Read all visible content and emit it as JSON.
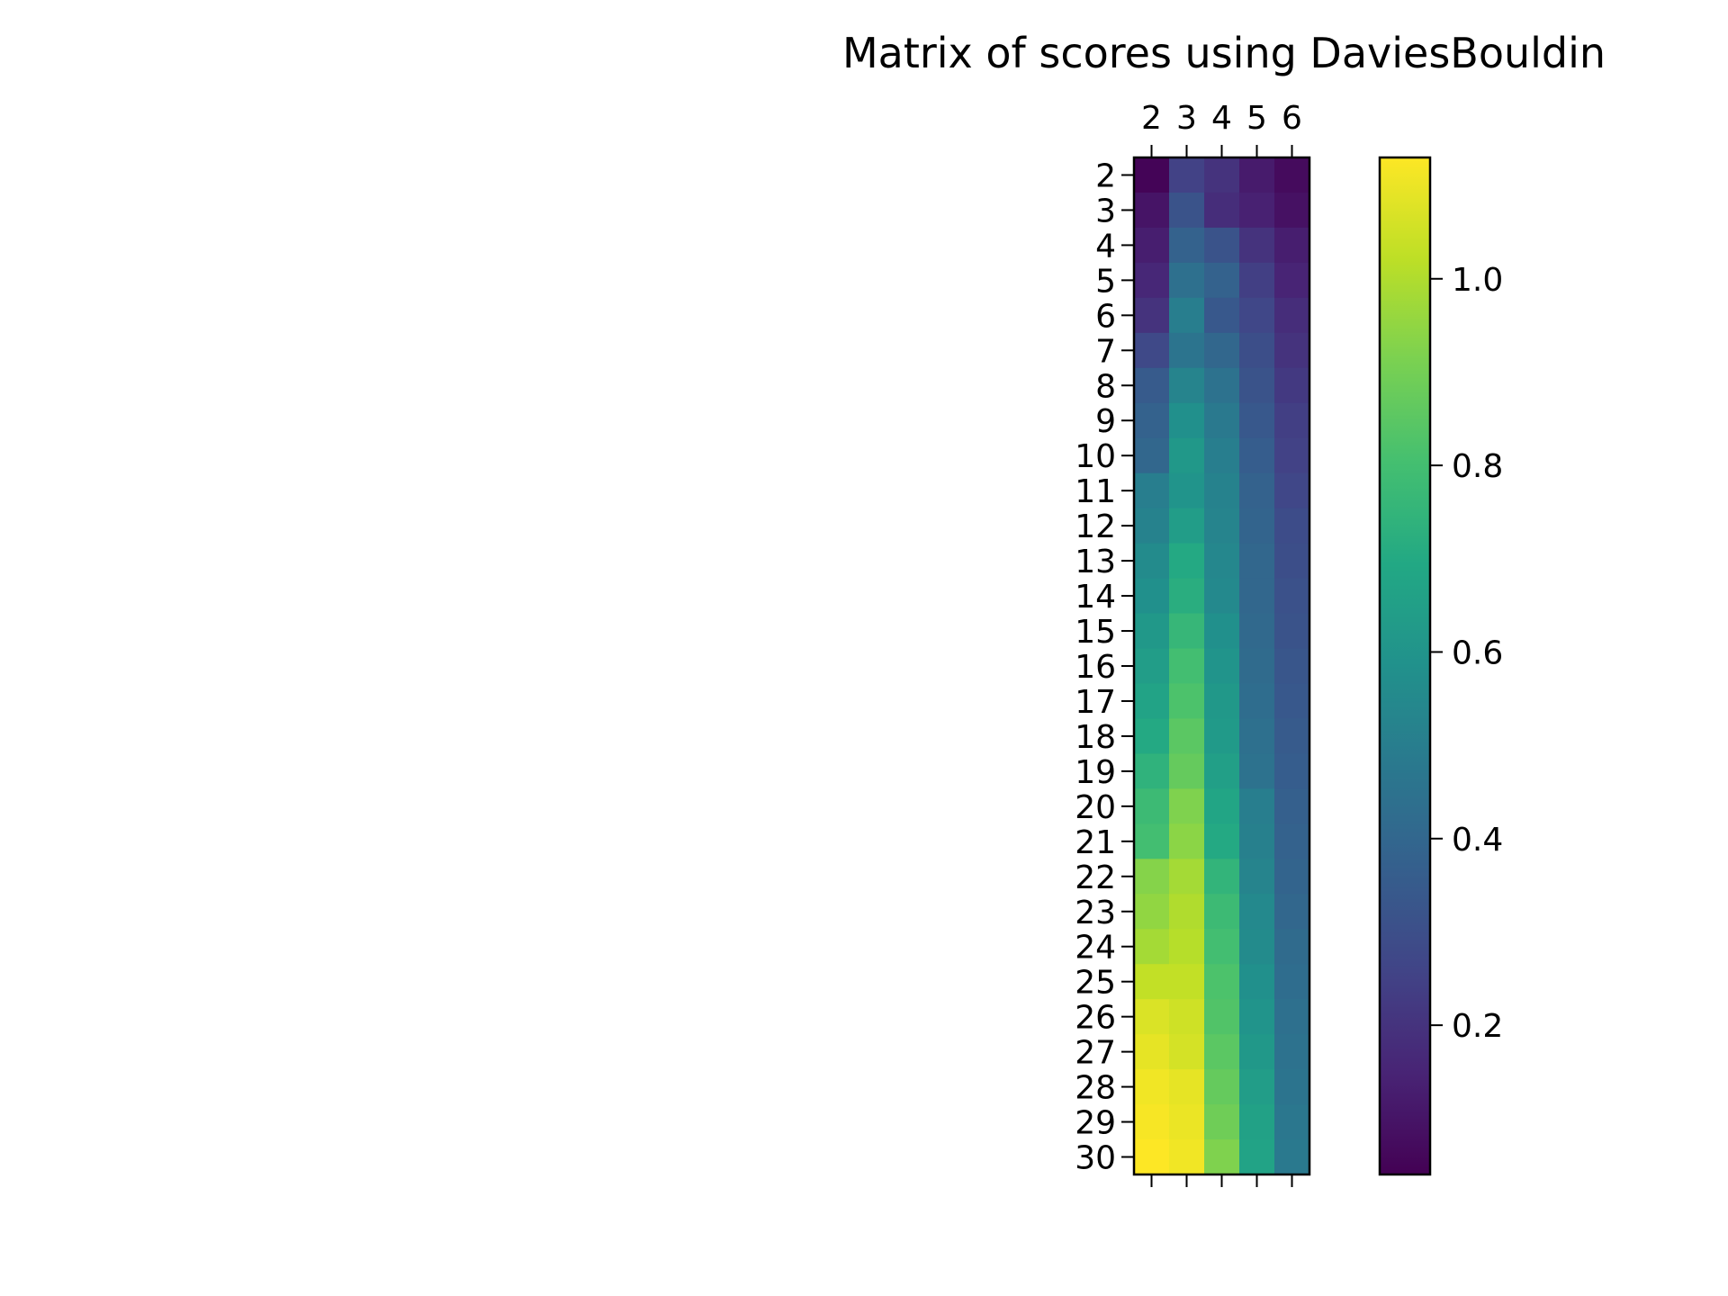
{
  "chart_data": {
    "type": "heatmap",
    "title": "Matrix of scores using DaviesBouldin",
    "xlabel": "",
    "ylabel": "",
    "x_categories": [
      "2",
      "3",
      "4",
      "5",
      "6"
    ],
    "y_categories": [
      "2",
      "3",
      "4",
      "5",
      "6",
      "7",
      "8",
      "9",
      "10",
      "11",
      "12",
      "13",
      "14",
      "15",
      "16",
      "17",
      "18",
      "19",
      "20",
      "21",
      "22",
      "23",
      "24",
      "25",
      "26",
      "27",
      "28",
      "29",
      "30"
    ],
    "values": [
      [
        0.05,
        0.25,
        0.2,
        0.12,
        0.07
      ],
      [
        0.1,
        0.32,
        0.18,
        0.14,
        0.09
      ],
      [
        0.13,
        0.38,
        0.32,
        0.2,
        0.13
      ],
      [
        0.16,
        0.44,
        0.38,
        0.24,
        0.15
      ],
      [
        0.2,
        0.5,
        0.34,
        0.27,
        0.18
      ],
      [
        0.28,
        0.46,
        0.4,
        0.3,
        0.2
      ],
      [
        0.35,
        0.53,
        0.45,
        0.32,
        0.22
      ],
      [
        0.38,
        0.58,
        0.48,
        0.34,
        0.24
      ],
      [
        0.4,
        0.62,
        0.5,
        0.36,
        0.25
      ],
      [
        0.5,
        0.6,
        0.52,
        0.38,
        0.27
      ],
      [
        0.52,
        0.64,
        0.53,
        0.39,
        0.29
      ],
      [
        0.56,
        0.7,
        0.54,
        0.4,
        0.3
      ],
      [
        0.58,
        0.72,
        0.55,
        0.4,
        0.31
      ],
      [
        0.62,
        0.76,
        0.58,
        0.41,
        0.32
      ],
      [
        0.64,
        0.8,
        0.6,
        0.42,
        0.33
      ],
      [
        0.67,
        0.82,
        0.62,
        0.43,
        0.34
      ],
      [
        0.7,
        0.85,
        0.63,
        0.44,
        0.35
      ],
      [
        0.74,
        0.87,
        0.65,
        0.45,
        0.36
      ],
      [
        0.78,
        0.92,
        0.68,
        0.5,
        0.37
      ],
      [
        0.8,
        0.94,
        0.7,
        0.51,
        0.38
      ],
      [
        0.93,
        0.98,
        0.75,
        0.53,
        0.39
      ],
      [
        0.95,
        1.0,
        0.78,
        0.55,
        0.4
      ],
      [
        0.98,
        1.01,
        0.8,
        0.56,
        0.42
      ],
      [
        1.03,
        1.03,
        0.82,
        0.58,
        0.43
      ],
      [
        1.07,
        1.05,
        0.83,
        0.6,
        0.44
      ],
      [
        1.09,
        1.06,
        0.85,
        0.62,
        0.45
      ],
      [
        1.11,
        1.09,
        0.87,
        0.64,
        0.46
      ],
      [
        1.12,
        1.1,
        0.89,
        0.66,
        0.47
      ],
      [
        1.13,
        1.11,
        0.92,
        0.67,
        0.48
      ]
    ],
    "colormap": "viridis",
    "colorbar": {
      "min": 0.04,
      "max": 1.13,
      "ticks": [
        "0.2",
        "0.4",
        "0.6",
        "0.8",
        "1.0"
      ],
      "tick_values": [
        0.2,
        0.4,
        0.6,
        0.8,
        1.0
      ]
    },
    "grid": false,
    "legend": "colorbar-right"
  }
}
